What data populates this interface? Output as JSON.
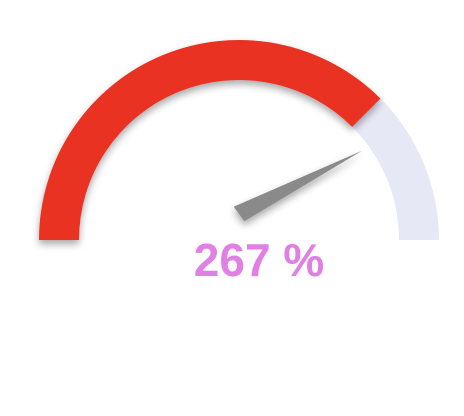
{
  "chart_data": {
    "type": "gauge",
    "value": 267,
    "value_label": "267 %",
    "fill_fraction": 0.75,
    "needle_fraction": 0.8,
    "colors": {
      "fill": "#e93323",
      "track": "#e6e8f6",
      "needle": "#8a8a8a",
      "value_text": "#e07fe4"
    }
  }
}
